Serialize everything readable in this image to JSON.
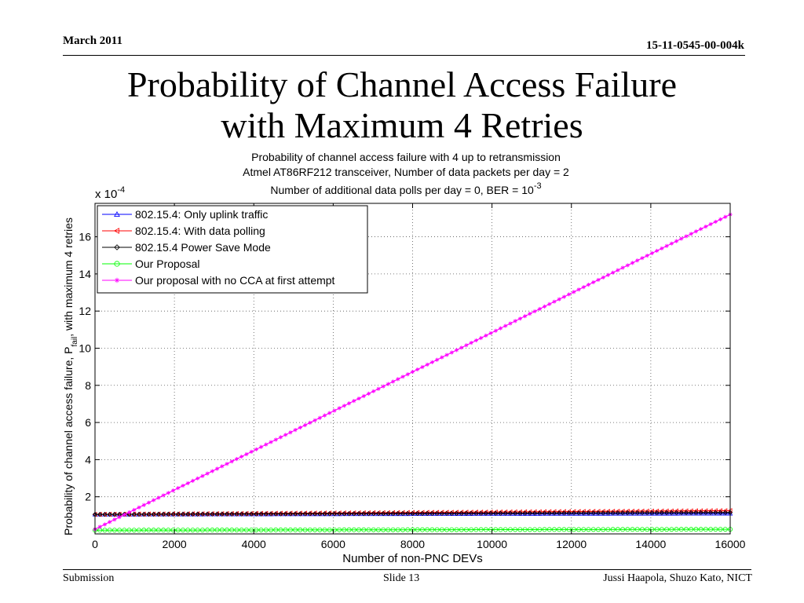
{
  "slide": {
    "header_left": "March 2011",
    "header_right": "15-11-0545-00-004k",
    "title_line1": "Probability of Channel Access Failure",
    "title_line2": "with Maximum 4 Retries",
    "footer_left": "Submission",
    "footer_center": "Slide 13",
    "footer_right": "Jussi Haapola, Shuzo Kato, NICT"
  },
  "chart_data": {
    "type": "line",
    "title": [
      "Probability of channel access failure with 4 up to retransmission",
      "Atmel AT86RF212 transceiver, Number of data packets per day = 2",
      "Number of additional data polls per day = 0, BER = 10"
    ],
    "title_exponent": "-3",
    "xlabel": "Number of non-PNC DEVs",
    "ylabel": "Probability of channel access failure, P",
    "ylabel_subscript": "fail",
    "ylabel_suffix": ", with maximum 4 retries",
    "y_multiplier": "x 10",
    "y_multiplier_exponent": "-4",
    "xlim": [
      0,
      16000
    ],
    "ylim": [
      0,
      17.8
    ],
    "xticks": [
      0,
      2000,
      4000,
      6000,
      8000,
      10000,
      12000,
      14000,
      16000
    ],
    "yticks": [
      2,
      4,
      6,
      8,
      10,
      12,
      14,
      16
    ],
    "xtick_labels": [
      "0",
      "2000",
      "4000",
      "6000",
      "8000",
      "10000",
      "12000",
      "14000",
      "16000"
    ],
    "ytick_labels": [
      "2",
      "4",
      "6",
      "8",
      "10",
      "12",
      "14",
      "16"
    ],
    "grid": true,
    "legend_position": "top-left",
    "series": [
      {
        "name": "802.15.4: Only uplink traffic",
        "color": "#0000ff",
        "marker": "triangle-up",
        "x": [
          0,
          16000
        ],
        "y": [
          1.05,
          1.1
        ]
      },
      {
        "name": "802.15.4: With data polling",
        "color": "#ff0000",
        "marker": "triangle-left",
        "x": [
          0,
          16000
        ],
        "y": [
          1.05,
          1.25
        ]
      },
      {
        "name": "802.15.4 Power Save Mode",
        "color": "#000000",
        "marker": "diamond",
        "x": [
          0,
          16000
        ],
        "y": [
          1.05,
          1.15
        ]
      },
      {
        "name": "Our Proposal",
        "color": "#00ff00",
        "marker": "circle",
        "x": [
          0,
          16000
        ],
        "y": [
          0.2,
          0.25
        ]
      },
      {
        "name": "Our proposal with no CCA at first attempt",
        "color": "#ff00ff",
        "marker": "star",
        "x": [
          0,
          16000
        ],
        "y": [
          0.25,
          17.2
        ]
      }
    ]
  }
}
